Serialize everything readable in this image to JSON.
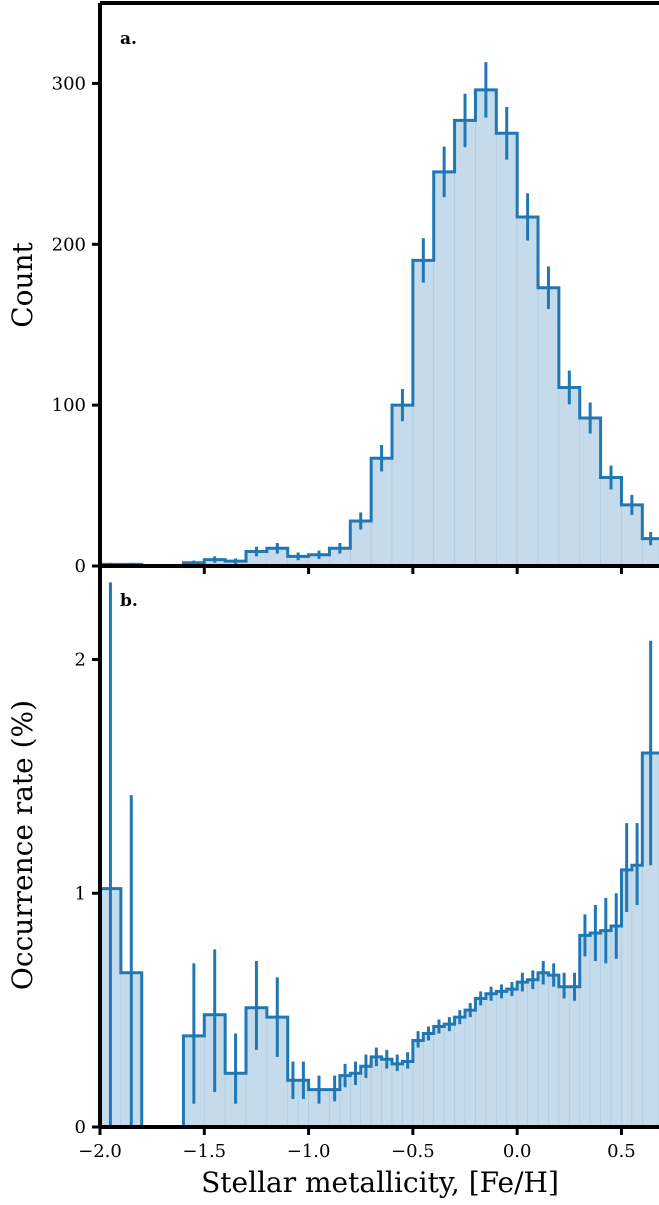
{
  "chart_data": [
    {
      "type": "bar",
      "panel_label": "a.",
      "ylabel": "Count",
      "xlabel": "",
      "xlim": [
        -2.0,
        0.68
      ],
      "ylim": [
        0,
        350
      ],
      "yticks": [
        0,
        100,
        200,
        300
      ],
      "yticklabels": [
        "0",
        "100",
        "200",
        "300"
      ],
      "xticks": [
        -2.0,
        -1.5,
        -1.0,
        -0.5,
        0.0,
        0.5
      ],
      "bin_width": 0.1,
      "x": [
        -1.95,
        -1.85,
        -1.75,
        -1.65,
        -1.55,
        -1.45,
        -1.35,
        -1.25,
        -1.15,
        -1.05,
        -0.95,
        -0.85,
        -0.75,
        -0.65,
        -0.55,
        -0.45,
        -0.35,
        -0.25,
        -0.15,
        -0.05,
        0.05,
        0.15,
        0.25,
        0.35,
        0.45,
        0.55,
        0.65
      ],
      "values": [
        1,
        1,
        0,
        0,
        2,
        4,
        3,
        9,
        11,
        6,
        7,
        11,
        28,
        67,
        100,
        190,
        245,
        277,
        296,
        269,
        217,
        173,
        111,
        92,
        55,
        38,
        17
      ],
      "errors": [
        1,
        1,
        0,
        0,
        1.4,
        2,
        1.7,
        3,
        3.3,
        2.4,
        2.6,
        3.3,
        5.3,
        8.2,
        10,
        13.8,
        15.7,
        16.6,
        17.2,
        16.4,
        14.7,
        13.2,
        10.5,
        9.6,
        7.4,
        6.2,
        4.1
      ],
      "color": "#1f77b4",
      "fill_color": "#c5dbeb"
    },
    {
      "type": "bar",
      "panel_label": "b.",
      "ylabel": "Occurrence rate (%)",
      "xlabel": "Stellar metallicity, [Fe/H]",
      "xlim": [
        -2.0,
        0.68
      ],
      "ylim": [
        0,
        2.4
      ],
      "yticks": [
        0,
        1,
        2
      ],
      "yticklabels": [
        "0",
        "1",
        "2"
      ],
      "xticks": [
        -2.0,
        -1.5,
        -1.0,
        -0.5,
        0.0,
        0.5
      ],
      "xticklabels": [
        "−2.0",
        "−1.5",
        "−1.0",
        "−0.5",
        "0.0",
        "0.5"
      ],
      "bins": [
        {
          "x0": -2.0,
          "x1": -1.9,
          "value": 1.02,
          "lo": 0.0,
          "hi": 2.33
        },
        {
          "x0": -1.9,
          "x1": -1.8,
          "value": 0.66,
          "lo": 0.0,
          "hi": 1.42
        },
        {
          "x0": -1.6,
          "x1": -1.5,
          "value": 0.39,
          "lo": 0.1,
          "hi": 0.7
        },
        {
          "x0": -1.5,
          "x1": -1.4,
          "value": 0.48,
          "lo": 0.15,
          "hi": 0.76
        },
        {
          "x0": -1.4,
          "x1": -1.3,
          "value": 0.23,
          "lo": 0.1,
          "hi": 0.4
        },
        {
          "x0": -1.3,
          "x1": -1.2,
          "value": 0.51,
          "lo": 0.33,
          "hi": 0.71
        },
        {
          "x0": -1.2,
          "x1": -1.1,
          "value": 0.47,
          "lo": 0.3,
          "hi": 0.64
        },
        {
          "x0": -1.1,
          "x1": -1.05,
          "value": 0.2,
          "lo": 0.12,
          "hi": 0.28
        },
        {
          "x0": -1.05,
          "x1": -1.0,
          "value": 0.2,
          "lo": 0.12,
          "hi": 0.28
        },
        {
          "x0": -1.0,
          "x1": -0.9,
          "value": 0.16,
          "lo": 0.1,
          "hi": 0.22
        },
        {
          "x0": -0.9,
          "x1": -0.85,
          "value": 0.16,
          "lo": 0.11,
          "hi": 0.22
        },
        {
          "x0": -0.85,
          "x1": -0.8,
          "value": 0.22,
          "lo": 0.17,
          "hi": 0.27
        },
        {
          "x0": -0.8,
          "x1": -0.75,
          "value": 0.23,
          "lo": 0.18,
          "hi": 0.28
        },
        {
          "x0": -0.75,
          "x1": -0.7,
          "value": 0.26,
          "lo": 0.21,
          "hi": 0.31
        },
        {
          "x0": -0.7,
          "x1": -0.65,
          "value": 0.3,
          "lo": 0.26,
          "hi": 0.34
        },
        {
          "x0": -0.65,
          "x1": -0.6,
          "value": 0.29,
          "lo": 0.25,
          "hi": 0.33
        },
        {
          "x0": -0.6,
          "x1": -0.55,
          "value": 0.27,
          "lo": 0.24,
          "hi": 0.31
        },
        {
          "x0": -0.55,
          "x1": -0.5,
          "value": 0.28,
          "lo": 0.25,
          "hi": 0.32
        },
        {
          "x0": -0.5,
          "x1": -0.45,
          "value": 0.37,
          "lo": 0.34,
          "hi": 0.41
        },
        {
          "x0": -0.45,
          "x1": -0.4,
          "value": 0.4,
          "lo": 0.37,
          "hi": 0.43
        },
        {
          "x0": -0.4,
          "x1": -0.35,
          "value": 0.43,
          "lo": 0.4,
          "hi": 0.46
        },
        {
          "x0": -0.35,
          "x1": -0.3,
          "value": 0.44,
          "lo": 0.41,
          "hi": 0.47
        },
        {
          "x0": -0.3,
          "x1": -0.25,
          "value": 0.47,
          "lo": 0.44,
          "hi": 0.5
        },
        {
          "x0": -0.25,
          "x1": -0.2,
          "value": 0.5,
          "lo": 0.47,
          "hi": 0.53
        },
        {
          "x0": -0.2,
          "x1": -0.15,
          "value": 0.55,
          "lo": 0.52,
          "hi": 0.58
        },
        {
          "x0": -0.15,
          "x1": -0.1,
          "value": 0.57,
          "lo": 0.54,
          "hi": 0.6
        },
        {
          "x0": -0.1,
          "x1": -0.05,
          "value": 0.58,
          "lo": 0.55,
          "hi": 0.61
        },
        {
          "x0": -0.05,
          "x1": 0.0,
          "value": 0.59,
          "lo": 0.56,
          "hi": 0.62
        },
        {
          "x0": 0.0,
          "x1": 0.05,
          "value": 0.62,
          "lo": 0.58,
          "hi": 0.66
        },
        {
          "x0": 0.05,
          "x1": 0.1,
          "value": 0.63,
          "lo": 0.59,
          "hi": 0.67
        },
        {
          "x0": 0.1,
          "x1": 0.15,
          "value": 0.66,
          "lo": 0.61,
          "hi": 0.71
        },
        {
          "x0": 0.15,
          "x1": 0.2,
          "value": 0.65,
          "lo": 0.6,
          "hi": 0.7
        },
        {
          "x0": 0.2,
          "x1": 0.25,
          "value": 0.6,
          "lo": 0.55,
          "hi": 0.66
        },
        {
          "x0": 0.25,
          "x1": 0.3,
          "value": 0.6,
          "lo": 0.54,
          "hi": 0.66
        },
        {
          "x0": 0.3,
          "x1": 0.35,
          "value": 0.82,
          "lo": 0.73,
          "hi": 0.91
        },
        {
          "x0": 0.35,
          "x1": 0.4,
          "value": 0.83,
          "lo": 0.71,
          "hi": 0.95
        },
        {
          "x0": 0.4,
          "x1": 0.45,
          "value": 0.84,
          "lo": 0.7,
          "hi": 0.98
        },
        {
          "x0": 0.45,
          "x1": 0.5,
          "value": 0.86,
          "lo": 0.72,
          "hi": 1.0
        },
        {
          "x0": 0.5,
          "x1": 0.55,
          "value": 1.1,
          "lo": 0.92,
          "hi": 1.3
        },
        {
          "x0": 0.55,
          "x1": 0.6,
          "value": 1.12,
          "lo": 0.95,
          "hi": 1.3
        },
        {
          "x0": 0.6,
          "x1": 0.68,
          "value": 1.6,
          "lo": 1.12,
          "hi": 2.08
        }
      ],
      "color": "#1f77b4",
      "fill_color": "#c5dbeb"
    }
  ]
}
